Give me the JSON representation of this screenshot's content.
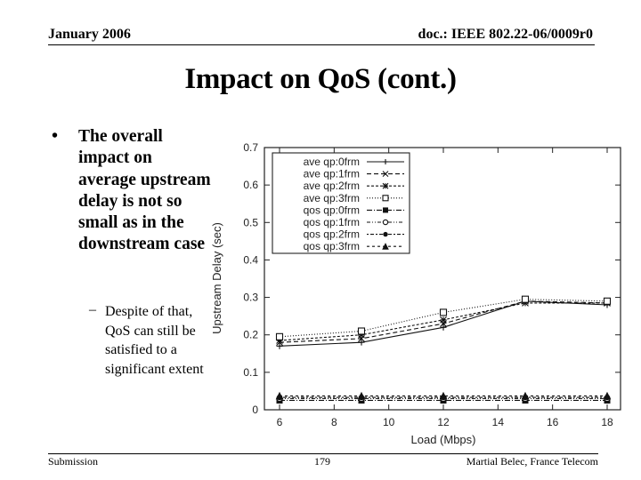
{
  "header": {
    "date": "January 2006",
    "doc_id": "doc.: IEEE 802.22-06/0009r0"
  },
  "title": "Impact on QoS (cont.)",
  "content": {
    "bullet": "The overall impact on average upstream delay is not so small as in the downstream case",
    "bullet_marker": "•",
    "sub_bullet_marker": "–",
    "sub_bullet": "Despite of that, QoS can still be satisfied to a significant extent"
  },
  "footer": {
    "left": "Submission",
    "page_number": "179",
    "right": "Martial Belec, France Telecom"
  },
  "chart_data": {
    "type": "line",
    "title": "",
    "xlabel": "Load (Mbps)",
    "ylabel": "Upstream Delay (sec)",
    "xlim": [
      5.5,
      18.6
    ],
    "ylim": [
      0,
      0.7
    ],
    "xticks": [
      6,
      8,
      10,
      12,
      14,
      16,
      18
    ],
    "yticks": [
      0,
      0.1,
      0.2,
      0.3,
      0.4,
      0.5,
      0.6,
      0.7
    ],
    "ytick_labels": [
      "0",
      "0.1",
      "0.2",
      "0.3",
      "0.4",
      "0.5",
      "0.6",
      "0.7"
    ],
    "grid": false,
    "legend_position": "upper left",
    "x": [
      6,
      9,
      12,
      15,
      18
    ],
    "series": [
      {
        "name": "ave qp:0frm",
        "marker": "plus",
        "dash": "solid",
        "values": [
          0.17,
          0.18,
          0.22,
          0.29,
          0.28
        ]
      },
      {
        "name": "ave qp:1frm",
        "marker": "x",
        "dash": "dashed",
        "values": [
          0.18,
          0.19,
          0.23,
          0.29,
          0.285
        ]
      },
      {
        "name": "ave qp:2frm",
        "marker": "star",
        "dash": "short-dash",
        "values": [
          0.185,
          0.2,
          0.24,
          0.285,
          0.285
        ]
      },
      {
        "name": "ave qp:3frm",
        "marker": "open-square",
        "dash": "dotted",
        "values": [
          0.195,
          0.21,
          0.26,
          0.295,
          0.29
        ]
      },
      {
        "name": "qos qp:0frm",
        "marker": "filled-square",
        "dash": "dash-dot",
        "values": [
          0.025,
          0.025,
          0.025,
          0.025,
          0.025
        ]
      },
      {
        "name": "qos qp:1frm",
        "marker": "open-circle",
        "dash": "dash-dot-dot",
        "values": [
          0.03,
          0.03,
          0.03,
          0.03,
          0.03
        ]
      },
      {
        "name": "qos qp:2frm",
        "marker": "filled-circle",
        "dash": "dotted-dash",
        "values": [
          0.033,
          0.033,
          0.033,
          0.033,
          0.033
        ]
      },
      {
        "name": "qos qp:3frm",
        "marker": "triangle",
        "dash": "sparse-dash",
        "values": [
          0.037,
          0.037,
          0.037,
          0.037,
          0.037
        ]
      }
    ]
  }
}
